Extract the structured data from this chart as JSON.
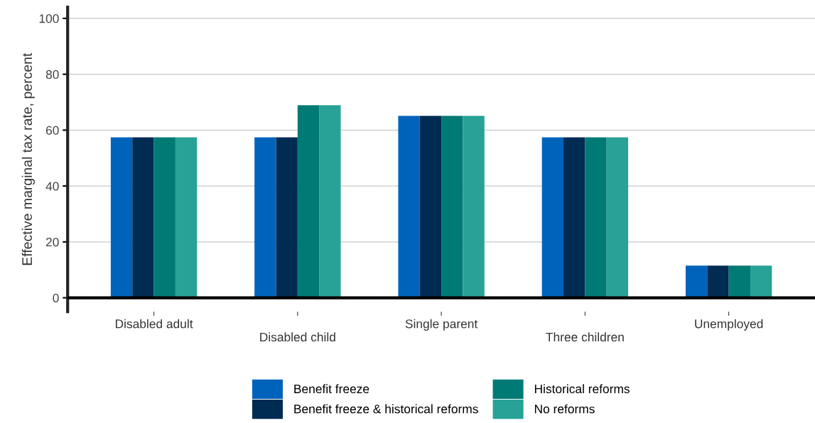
{
  "chart_data": {
    "type": "bar",
    "ylabel": "Effective marginal tax rate, percent",
    "categories": [
      "Disabled adult",
      "Disabled child",
      "Single parent",
      "Three children",
      "Unemployed"
    ],
    "series": [
      {
        "name": "Benefit freeze",
        "color": "#0063bb",
        "values": [
          57.4,
          57.4,
          65.1,
          57.4,
          11.5
        ]
      },
      {
        "name": "Benefit freeze & historical reforms",
        "color": "#002b53",
        "values": [
          57.4,
          57.4,
          65.1,
          57.4,
          11.5
        ]
      },
      {
        "name": "Historical reforms",
        "color": "#007a74",
        "values": [
          57.4,
          68.9,
          65.1,
          57.4,
          11.5
        ]
      },
      {
        "name": "No reforms",
        "color": "#28a296",
        "values": [
          57.4,
          68.9,
          65.1,
          57.4,
          11.5
        ]
      }
    ],
    "ylim": [
      -5,
      104
    ],
    "yticks": [
      0,
      20,
      40,
      60,
      80,
      100
    ],
    "grid": "y",
    "legend": "bottom",
    "ref_lines": [
      {
        "axis": "y",
        "value": 0,
        "color": "#000000"
      }
    ]
  }
}
